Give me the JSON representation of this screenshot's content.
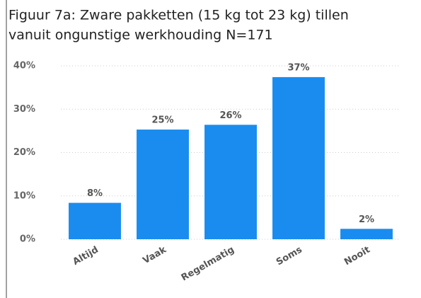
{
  "chart_data": {
    "type": "bar",
    "title": [
      "Figuur 7a: Zware pakketten (15 kg tot 23 kg) tillen",
      "vanuit ongunstige werkhouding N=171"
    ],
    "categories": [
      "Altijd",
      "Vaak",
      "Regelmatig",
      "Soms",
      "Nooit"
    ],
    "values": [
      8.4,
      25.3,
      26.4,
      37.4,
      2.4
    ],
    "value_labels": [
      "8%",
      "25%",
      "26%",
      "37%",
      "2%"
    ],
    "color": "#1a8cf0",
    "ylim": [
      0,
      40
    ],
    "yticks": [
      {
        "value": 0,
        "label": "0%"
      },
      {
        "value": 10,
        "label": "10%"
      },
      {
        "value": 20,
        "label": "20%"
      },
      {
        "value": 30,
        "label": "30%"
      },
      {
        "value": 40,
        "label": "40%"
      }
    ],
    "grid": true
  }
}
